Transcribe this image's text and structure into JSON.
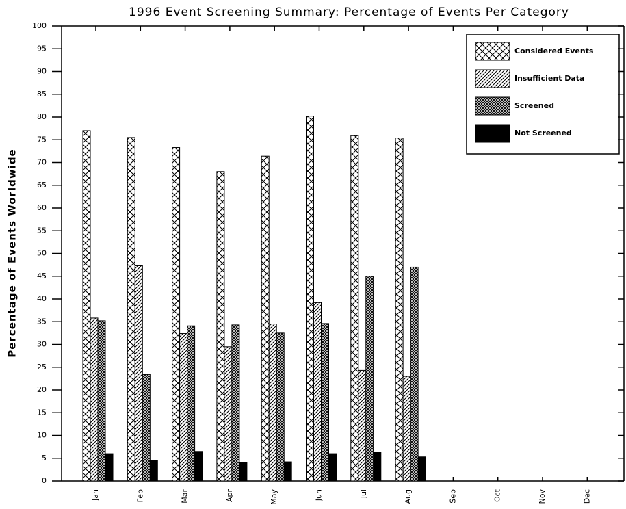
{
  "chart_data": {
    "type": "bar",
    "title": "1996 Event Screening Summary: Percentage of Events Per Category",
    "y_label": "Percentage of Events Worldwide",
    "categories": [
      "Jan",
      "Feb",
      "Mar",
      "Apr",
      "May",
      "Jun",
      "Jul",
      "Aug",
      "Sep",
      "Oct",
      "Nov",
      "Dec"
    ],
    "series": [
      {
        "name": "Considered Events",
        "color": "#000000",
        "hatch": "crosshatch",
        "values": [
          77,
          75.5,
          73.3,
          68,
          71.4,
          80.2,
          75.9,
          75.4,
          null,
          null,
          null,
          null
        ]
      },
      {
        "name": "Insufficient Data",
        "color": "#000000",
        "hatch": "diagonal",
        "values": [
          35.8,
          47.3,
          32.4,
          29.5,
          34.5,
          39.2,
          24.3,
          23,
          null,
          null,
          null,
          null
        ]
      },
      {
        "name": "Screened",
        "color": "#000000",
        "hatch": "dense",
        "values": [
          35.2,
          23.4,
          34.1,
          34.3,
          32.5,
          34.6,
          45,
          47,
          null,
          null,
          null,
          null
        ]
      },
      {
        "name": "Not Screened",
        "color": "#000000",
        "hatch": "solid",
        "values": [
          6,
          4.5,
          6.5,
          4,
          4.2,
          6,
          6.3,
          5.3,
          null,
          null,
          null,
          null
        ]
      }
    ],
    "ylim": [
      0,
      100
    ],
    "yticks": [
      0,
      5,
      10,
      15,
      20,
      25,
      30,
      35,
      40,
      45,
      50,
      55,
      60,
      65,
      70,
      75,
      80,
      85,
      90,
      95,
      100
    ],
    "legend": "top-right"
  }
}
